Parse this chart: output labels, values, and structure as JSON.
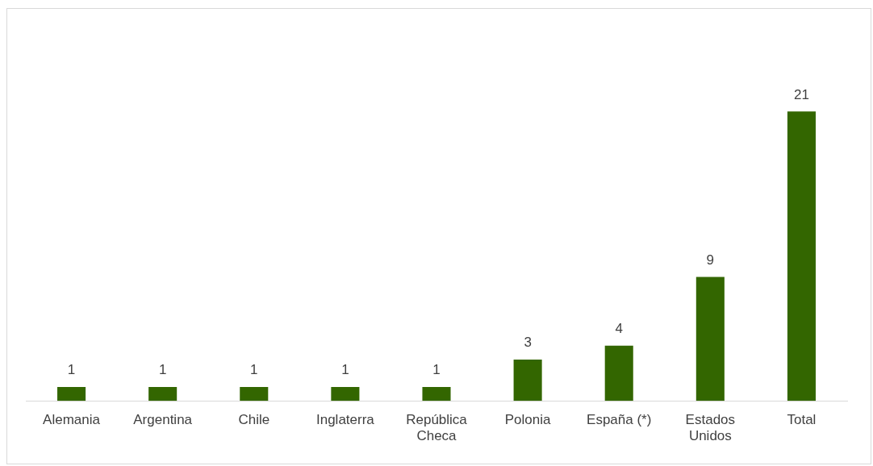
{
  "chart_data": {
    "type": "bar",
    "categories": [
      "Alemania",
      "Argentina",
      "Chile",
      "Inglaterra",
      "República Checa",
      "Polonia",
      "España (*)",
      "Estados Unidos",
      "Total"
    ],
    "values": [
      1,
      1,
      1,
      1,
      1,
      3,
      4,
      9,
      21
    ],
    "color": "#336600",
    "data_labels": true,
    "grid": false,
    "legend": false
  }
}
